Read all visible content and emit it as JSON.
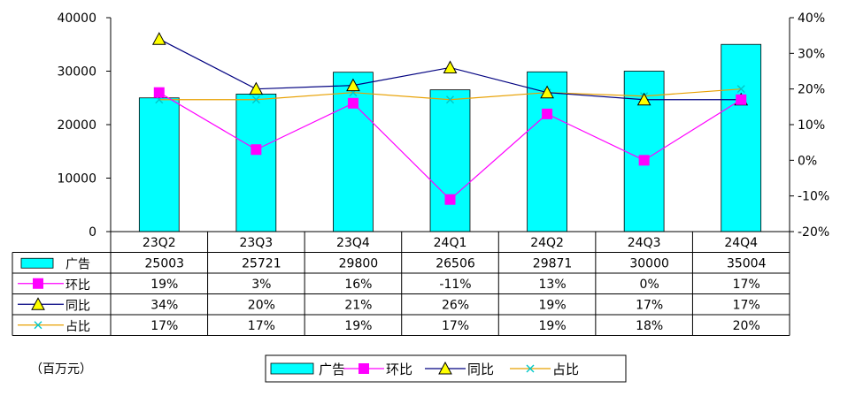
{
  "chart_data": {
    "type": "bar",
    "categories": [
      "23Q2",
      "23Q3",
      "23Q4",
      "24Q1",
      "24Q2",
      "24Q3",
      "24Q4"
    ],
    "series": [
      {
        "name": "广告",
        "kind": "bar",
        "axis": "left",
        "values": [
          25003,
          25721,
          29800,
          26506,
          29871,
          30000,
          35004
        ],
        "labels": [
          "25003",
          "25721",
          "29800",
          "26506",
          "29871",
          "30000",
          "35004"
        ],
        "color": "#00FFFF",
        "marker": "rect"
      },
      {
        "name": "环比",
        "kind": "line",
        "axis": "right",
        "values": [
          19,
          3,
          16,
          -11,
          13,
          0,
          17
        ],
        "labels": [
          "19%",
          "3%",
          "16%",
          "-11%",
          "13%",
          "0%",
          "17%"
        ],
        "color": "#FF00FF",
        "marker": "square"
      },
      {
        "name": "同比",
        "kind": "line",
        "axis": "right",
        "values": [
          34,
          20,
          21,
          26,
          19,
          17,
          17
        ],
        "labels": [
          "34%",
          "20%",
          "21%",
          "26%",
          "19%",
          "17%",
          "17%"
        ],
        "color": "#000080",
        "marker": "triangle",
        "markerFill": "#FFFF00"
      },
      {
        "name": "占比",
        "kind": "line",
        "axis": "right",
        "values": [
          17,
          17,
          19,
          17,
          19,
          18,
          20
        ],
        "labels": [
          "17%",
          "17%",
          "19%",
          "17%",
          "19%",
          "18%",
          "20%"
        ],
        "color": "#E8A000",
        "marker": "x",
        "markerColor": "#00C8C8"
      }
    ],
    "y_left": {
      "lim": [
        0,
        40000
      ],
      "ticks": [
        "0",
        "10000",
        "20000",
        "30000",
        "40000"
      ]
    },
    "y_right": {
      "lim": [
        -20,
        40
      ],
      "ticks": [
        "-20%",
        "-10%",
        "0%",
        "10%",
        "20%",
        "30%",
        "40%"
      ]
    },
    "unit_label": "（百万元）",
    "grid": false,
    "legend_position": "bottom",
    "data_table": true
  }
}
